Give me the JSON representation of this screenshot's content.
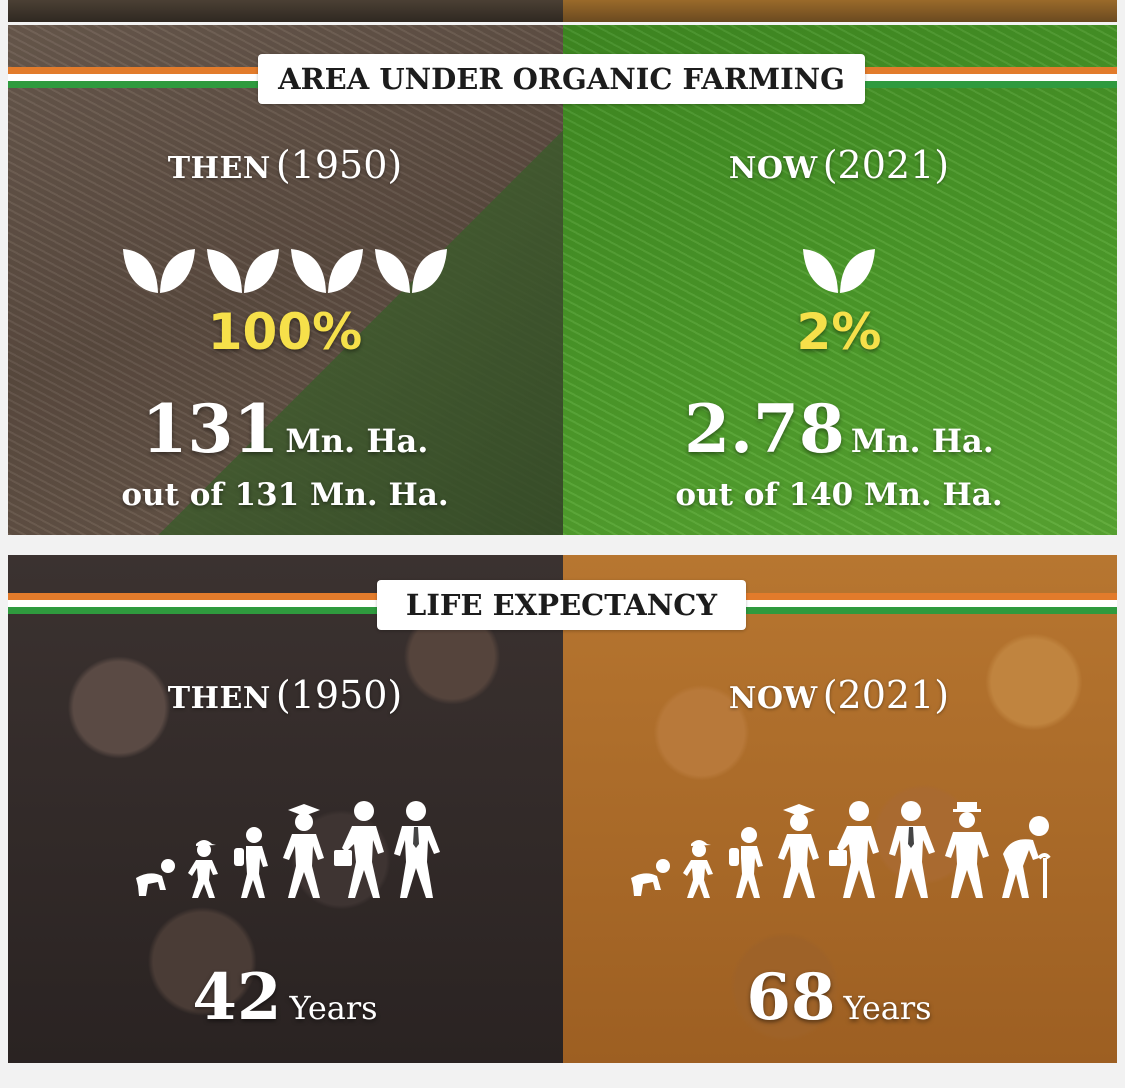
{
  "organic": {
    "title": "AREA UNDER ORGANIC FARMING",
    "then": {
      "label": "THEN",
      "year": "(1950)",
      "leaf_count": 4,
      "percent": "100%",
      "area_value": "131",
      "area_unit": "Mn. Ha.",
      "out_of": "out of 131 Mn. Ha."
    },
    "now": {
      "label": "NOW",
      "year": "(2021)",
      "leaf_count": 1,
      "percent": "2%",
      "area_value": "2.78",
      "area_unit": "Mn. Ha.",
      "out_of": "out of 140 Mn. Ha."
    }
  },
  "life": {
    "title": "LIFE EXPECTANCY",
    "then": {
      "label": "THEN",
      "year": "(1950)",
      "figures": [
        "crawling-baby-icon",
        "child-cap-icon",
        "child-backpack-icon",
        "graduate-icon",
        "student-briefcase-icon",
        "adult-tie-icon"
      ],
      "value": "42",
      "unit": "Years"
    },
    "now": {
      "label": "NOW",
      "year": "(2021)",
      "figures": [
        "crawling-baby-icon",
        "child-cap-icon",
        "child-backpack-icon",
        "graduate-icon",
        "student-briefcase-icon",
        "adult-tie-icon",
        "elder-hat-icon",
        "elderly-cane-icon"
      ],
      "value": "68",
      "unit": "Years"
    }
  },
  "colors": {
    "saffron": "#e27b2b",
    "white": "#ffffff",
    "green": "#2f9a3e",
    "percent_yellow": "#f6e04a"
  }
}
